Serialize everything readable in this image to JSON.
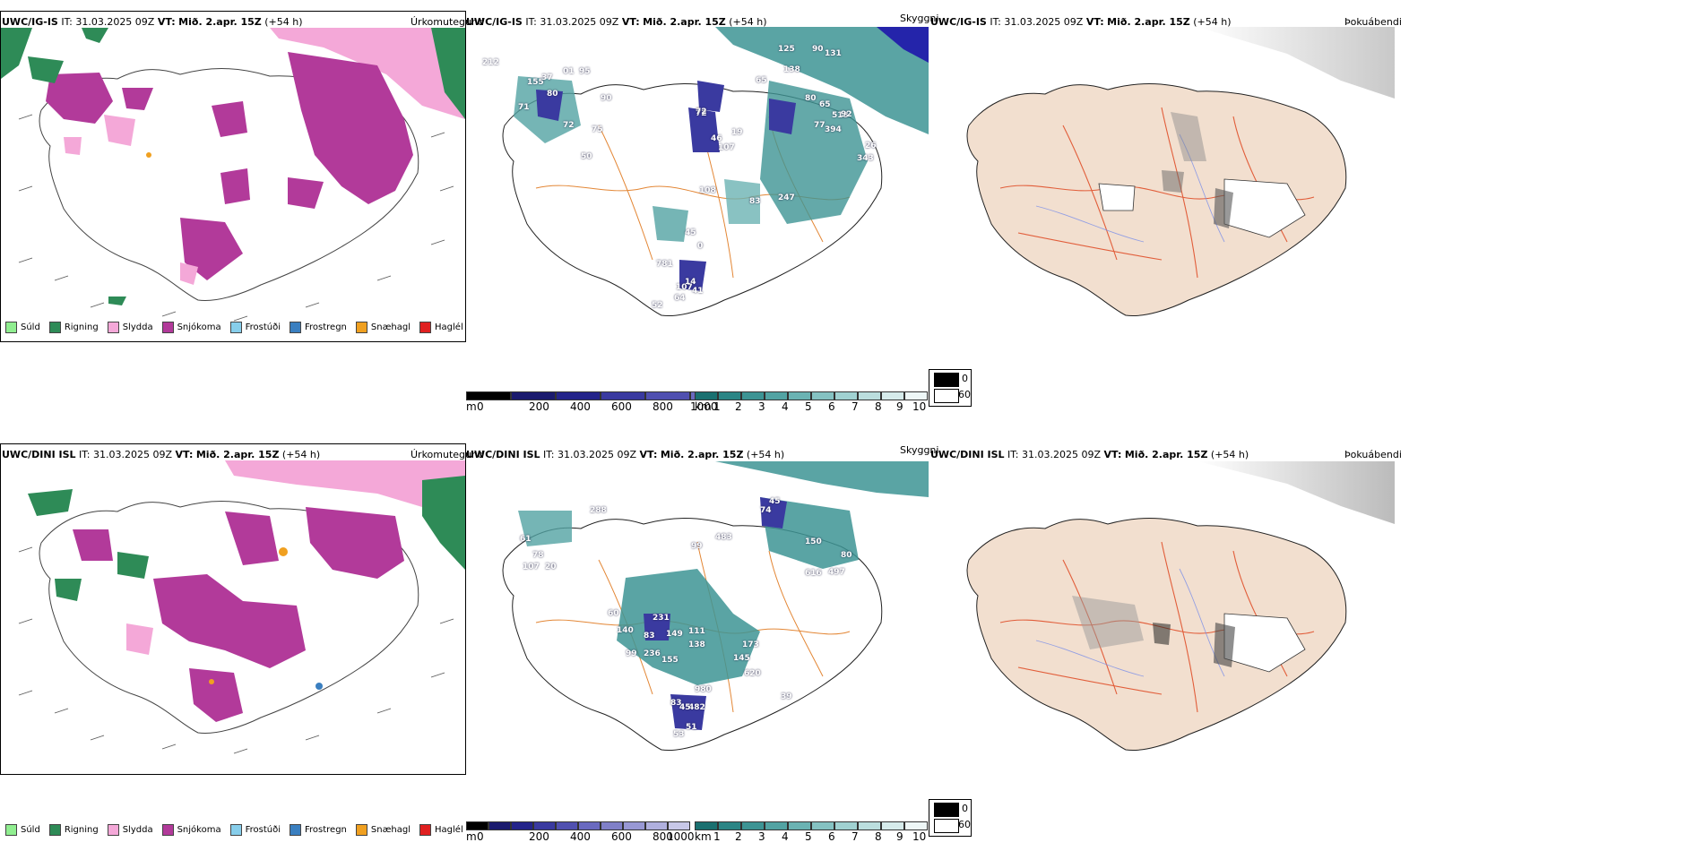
{
  "panels": [
    {
      "key": "p1",
      "model": "UWC/IG-IS",
      "it_label": "IT:",
      "it_value": "31.03.2025 09Z",
      "vt_label": "VT:",
      "vt_value": "Mið. 2.apr. 15Z",
      "lead": "(+54 h)",
      "title": "Úrkomutegund"
    },
    {
      "key": "p2",
      "model": "UWC/IG-IS",
      "it_label": "IT:",
      "it_value": "31.03.2025 09Z",
      "vt_label": "VT:",
      "vt_value": "Mið. 2.apr. 15Z",
      "lead": "(+54 h)",
      "title": "Skyggni"
    },
    {
      "key": "p3",
      "model": "UWC/IG-IS",
      "it_label": "IT:",
      "it_value": "31.03.2025 09Z",
      "vt_label": "VT:",
      "vt_value": "Mið. 2.apr. 15Z",
      "lead": "(+54 h)",
      "title": "Þokuábendi"
    },
    {
      "key": "p4",
      "model": "UWC/DINI ISL",
      "it_label": "IT:",
      "it_value": "31.03.2025 09Z",
      "vt_label": "VT:",
      "vt_value": "Mið. 2.apr. 15Z",
      "lead": "(+54 h)",
      "title": "Úrkomutegund"
    },
    {
      "key": "p5",
      "model": "UWC/DINI ISL",
      "it_label": "IT:",
      "it_value": "31.03.2025 09Z",
      "vt_label": "VT:",
      "vt_value": "Mið. 2.apr. 15Z",
      "lead": "(+54 h)",
      "title": "Skyggni"
    },
    {
      "key": "p6",
      "model": "UWC/DINI ISL",
      "it_label": "IT:",
      "it_value": "31.03.2025 09Z",
      "vt_label": "VT:",
      "vt_value": "Mið. 2.apr. 15Z",
      "lead": "(+54 h)",
      "title": "Þokuábendi"
    }
  ],
  "precip_legend": [
    {
      "label": "Súld",
      "color": "#90ee90"
    },
    {
      "label": "Rigning",
      "color": "#2e8b57"
    },
    {
      "label": "Slydda",
      "color": "#f4a8d8"
    },
    {
      "label": "Snjókoma",
      "color": "#b23a9a"
    },
    {
      "label": "Frostúði",
      "color": "#87ceeb"
    },
    {
      "label": "Frostregn",
      "color": "#3a7fc0"
    },
    {
      "label": "Snæhagl",
      "color": "#f0a020"
    },
    {
      "label": "Haglél",
      "color": "#e02020"
    }
  ],
  "ceiling_scale": {
    "unit": "m",
    "ticks": [
      "0",
      "200",
      "400",
      "600",
      "800",
      "1000"
    ],
    "colors": [
      "#000000",
      "#1a1a6e",
      "#24248a",
      "#3a3aa0",
      "#5050b0",
      "#6a6ac0",
      "#8080c8",
      "#9898d4",
      "#b0b0de",
      "#c8c8e8"
    ]
  },
  "visibility_scale": {
    "unit": "km",
    "ticks": [
      "1",
      "2",
      "3",
      "4",
      "5",
      "6",
      "7",
      "8",
      "9",
      "10"
    ],
    "colors": [
      "#1a7070",
      "#2b8585",
      "#3d9494",
      "#52a3a3",
      "#6bb3b3",
      "#85c2c2",
      "#a0d1d1",
      "#bbdede",
      "#d6ebeb",
      "#eef7f7"
    ]
  },
  "fog_legend": {
    "dark_label": "0",
    "light_label": "60"
  },
  "labels_top": [
    "212",
    "155",
    "37",
    "80",
    "01",
    "95",
    "90",
    "71",
    "72",
    "75",
    "50",
    "72",
    "65",
    "125",
    "90",
    "138",
    "131",
    "80",
    "72",
    "46",
    "107",
    "19",
    "65",
    "77",
    "394",
    "513",
    "92",
    "26",
    "343",
    "108",
    "83",
    "247",
    "45",
    "781",
    "107",
    "52",
    "64",
    "41",
    "14",
    "0"
  ],
  "labels_bottom": [
    "288",
    "61",
    "78",
    "107",
    "20",
    "74",
    "45",
    "99",
    "483",
    "150",
    "80",
    "616",
    "497",
    "60",
    "231",
    "140",
    "83",
    "149",
    "99",
    "236",
    "111",
    "155",
    "138",
    "173",
    "145",
    "620",
    "980",
    "83",
    "482",
    "51",
    "53",
    "39",
    "45"
  ]
}
